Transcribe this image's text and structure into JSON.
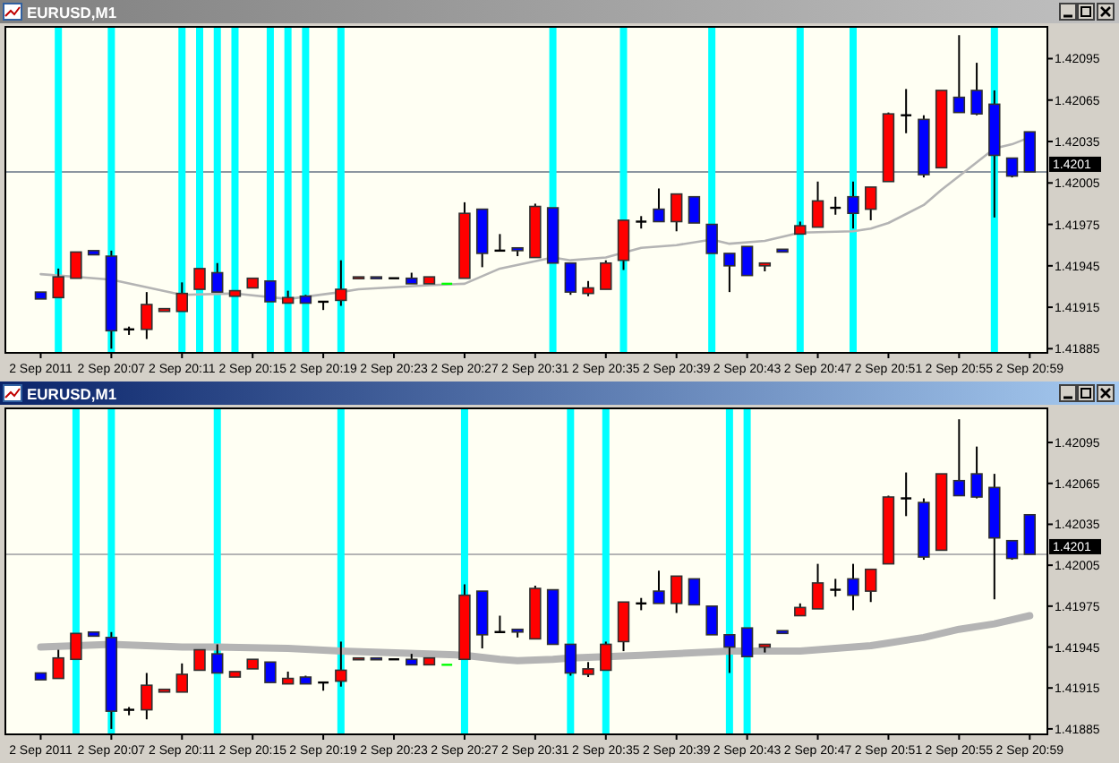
{
  "chart_data": [
    {
      "type": "candlestick",
      "title": "EURUSD,M1",
      "x": [
        "2011-09-02T20:03",
        "2011-09-02T20:04",
        "2011-09-02T20:05",
        "2011-09-02T20:06",
        "2011-09-02T20:07",
        "2011-09-02T20:08",
        "2011-09-02T20:09",
        "2011-09-02T20:10",
        "2011-09-02T20:11",
        "2011-09-02T20:12",
        "2011-09-02T20:13",
        "2011-09-02T20:14",
        "2011-09-02T20:15",
        "2011-09-02T20:16",
        "2011-09-02T20:17",
        "2011-09-02T20:18",
        "2011-09-02T20:19",
        "2011-09-02T20:20",
        "2011-09-02T20:21",
        "2011-09-02T20:22",
        "2011-09-02T20:23",
        "2011-09-02T20:24",
        "2011-09-02T20:25",
        "2011-09-02T20:26",
        "2011-09-02T20:27",
        "2011-09-02T20:28",
        "2011-09-02T20:29",
        "2011-09-02T20:30",
        "2011-09-02T20:31",
        "2011-09-02T20:32",
        "2011-09-02T20:33",
        "2011-09-02T20:34",
        "2011-09-02T20:35",
        "2011-09-02T20:36",
        "2011-09-02T20:37",
        "2011-09-02T20:38",
        "2011-09-02T20:39",
        "2011-09-02T20:40",
        "2011-09-02T20:41",
        "2011-09-02T20:42",
        "2011-09-02T20:43",
        "2011-09-02T20:44",
        "2011-09-02T20:45",
        "2011-09-02T20:46",
        "2011-09-02T20:47",
        "2011-09-02T20:48",
        "2011-09-02T20:49",
        "2011-09-02T20:50",
        "2011-09-02T20:51",
        "2011-09-02T20:52",
        "2011-09-02T20:53",
        "2011-09-02T20:54",
        "2011-09-02T20:55",
        "2011-09-02T20:56",
        "2011-09-02T20:57",
        "2011-09-02T20:58",
        "2011-09-02T20:59"
      ],
      "ohlc": [
        [
          1.41926,
          1.41926,
          1.41921,
          1.41921
        ],
        [
          1.41922,
          1.41943,
          1.41922,
          1.41937
        ],
        [
          1.41936,
          1.41955,
          1.41936,
          1.41955
        ],
        [
          1.41956,
          1.41956,
          1.41953,
          1.41953
        ],
        [
          1.41952,
          1.41956,
          1.41885,
          1.41898
        ],
        [
          1.41899,
          1.41901,
          1.41895,
          1.41899
        ],
        [
          1.41899,
          1.41926,
          1.41892,
          1.41917
        ],
        [
          1.41912,
          1.41914,
          1.41912,
          1.41914
        ],
        [
          1.41912,
          1.41933,
          1.41912,
          1.41925
        ],
        [
          1.41928,
          1.41943,
          1.41928,
          1.41943
        ],
        [
          1.4194,
          1.41947,
          1.41926,
          1.41926
        ],
        [
          1.41923,
          1.41927,
          1.41923,
          1.41927
        ],
        [
          1.41929,
          1.41936,
          1.41929,
          1.41936
        ],
        [
          1.41934,
          1.41934,
          1.41919,
          1.41919
        ],
        [
          1.41918,
          1.41927,
          1.41918,
          1.41922
        ],
        [
          1.41923,
          1.41924,
          1.41918,
          1.41918
        ],
        [
          1.41919,
          1.41919,
          1.41913,
          1.41919
        ],
        [
          1.4192,
          1.41949,
          1.41916,
          1.41928
        ],
        [
          1.41936,
          1.41937,
          1.41936,
          1.41937
        ],
        [
          1.41937,
          1.41937,
          1.41936,
          1.41936
        ],
        [
          1.41936,
          1.41936,
          1.41936,
          1.41936
        ],
        [
          1.41936,
          1.4194,
          1.41932,
          1.41932
        ],
        [
          1.41932,
          1.41937,
          1.41932,
          1.41937
        ],
        [
          1.41932,
          1.41932,
          1.41932,
          1.41932
        ],
        [
          1.41936,
          1.41991,
          1.41936,
          1.41983
        ],
        [
          1.41986,
          1.41986,
          1.41944,
          1.41954
        ],
        [
          1.41956,
          1.41968,
          1.41956,
          1.41956
        ],
        [
          1.41958,
          1.41958,
          1.41952,
          1.41956
        ],
        [
          1.41951,
          1.4199,
          1.41951,
          1.41988
        ],
        [
          1.41987,
          1.41987,
          1.41947,
          1.41947
        ],
        [
          1.41947,
          1.41947,
          1.41924,
          1.41926
        ],
        [
          1.41925,
          1.41934,
          1.41923,
          1.41929
        ],
        [
          1.41928,
          1.41949,
          1.41928,
          1.41947
        ],
        [
          1.41949,
          1.41978,
          1.41942,
          1.41978
        ],
        [
          1.41977,
          1.41981,
          1.41972,
          1.41977
        ],
        [
          1.41986,
          1.42001,
          1.41977,
          1.41977
        ],
        [
          1.41977,
          1.41997,
          1.4197,
          1.41997
        ],
        [
          1.41995,
          1.41995,
          1.41976,
          1.41976
        ],
        [
          1.41975,
          1.41975,
          1.41954,
          1.41954
        ],
        [
          1.41954,
          1.41954,
          1.41926,
          1.41945
        ],
        [
          1.41959,
          1.41959,
          1.41938,
          1.41938
        ],
        [
          1.41945,
          1.41947,
          1.41941,
          1.41947
        ],
        [
          1.41957,
          1.41957,
          1.41955,
          1.41955
        ],
        [
          1.41968,
          1.41977,
          1.41968,
          1.41974
        ],
        [
          1.41973,
          1.42006,
          1.41973,
          1.41992
        ],
        [
          1.41987,
          1.41995,
          1.41982,
          1.41987
        ],
        [
          1.41995,
          1.42006,
          1.41972,
          1.41983
        ],
        [
          1.41986,
          1.42002,
          1.41978,
          1.42002
        ],
        [
          1.42006,
          1.42056,
          1.42006,
          1.42055
        ],
        [
          1.42054,
          1.42073,
          1.42041,
          1.42054
        ],
        [
          1.42051,
          1.42054,
          1.42009,
          1.42011
        ],
        [
          1.42016,
          1.42072,
          1.42016,
          1.42072
        ],
        [
          1.42067,
          1.42112,
          1.42056,
          1.42056
        ],
        [
          1.42072,
          1.42092,
          1.42054,
          1.42055
        ],
        [
          1.42062,
          1.42072,
          1.4198,
          1.42025
        ],
        [
          1.42023,
          1.42023,
          1.42009,
          1.4201
        ],
        [
          1.42042,
          1.42042,
          1.42013,
          1.42013
        ]
      ],
      "colors": [
        "#0000ff",
        "#ff0000",
        "#ff0000",
        "#0000ff",
        "#0000ff",
        "#000000",
        "#ff0000",
        "#ff0000",
        "#ff0000",
        "#ff0000",
        "#0000ff",
        "#ff0000",
        "#ff0000",
        "#0000ff",
        "#ff0000",
        "#0000ff",
        "#000000",
        "#ff0000",
        "#ff0000",
        "#0000ff",
        "#000000",
        "#0000ff",
        "#ff0000",
        "#00ff00",
        "#ff0000",
        "#0000ff",
        "#000000",
        "#0000ff",
        "#ff0000",
        "#0000ff",
        "#0000ff",
        "#ff0000",
        "#ff0000",
        "#ff0000",
        "#000000",
        "#0000ff",
        "#ff0000",
        "#0000ff",
        "#0000ff",
        "#0000ff",
        "#0000ff",
        "#ff0000",
        "#0000ff",
        "#ff0000",
        "#ff0000",
        "#000000",
        "#0000ff",
        "#ff0000",
        "#ff0000",
        "#000000",
        "#0000ff",
        "#ff0000",
        "#0000ff",
        "#0000ff",
        "#0000ff",
        "#0000ff",
        "#0000ff"
      ],
      "series": [
        {
          "type": "line",
          "color": "#b4b4b4",
          "x": [
            "2011-09-02T20:03",
            "2011-09-02T20:07",
            "2011-09-02T20:11",
            "2011-09-02T20:14",
            "2011-09-02T20:17",
            "2011-09-02T20:20",
            "2011-09-02T20:21",
            "2011-09-02T20:25",
            "2011-09-02T20:27",
            "2011-09-02T20:29",
            "2011-09-02T20:32",
            "2011-09-02T20:33",
            "2011-09-02T20:35",
            "2011-09-02T20:37",
            "2011-09-02T20:39",
            "2011-09-02T20:41",
            "2011-09-02T20:42",
            "2011-09-02T20:44",
            "2011-09-02T20:46",
            "2011-09-02T20:49",
            "2011-09-02T20:50",
            "2011-09-02T20:51",
            "2011-09-02T20:53",
            "2011-09-02T20:54",
            "2011-09-02T20:56",
            "2011-09-02T20:57",
            "2011-09-02T20:58",
            "2011-09-02T20:59"
          ],
          "values": [
            1.41939,
            1.41935,
            1.41924,
            1.41925,
            1.41921,
            1.41926,
            1.41928,
            1.41931,
            1.41932,
            1.41943,
            1.41951,
            1.41949,
            1.41951,
            1.41958,
            1.4196,
            1.41964,
            1.41961,
            1.41963,
            1.41969,
            1.4197,
            1.41972,
            1.41976,
            1.41989,
            1.42,
            1.4202,
            1.4203,
            1.42033,
            1.42038
          ]
        }
      ],
      "xlim": [
        "2011-09-02T20:01",
        "2011-09-02T21:00"
      ],
      "xticks": [
        {
          "value": "2011-09-02T20:03",
          "label": "2 Sep 2011"
        },
        {
          "value": "2011-09-02T20:07",
          "label": "2 Sep 20:07"
        },
        {
          "value": "2011-09-02T20:11",
          "label": "2 Sep 20:11"
        },
        {
          "value": "2011-09-02T20:15",
          "label": "2 Sep 20:15"
        },
        {
          "value": "2011-09-02T20:19",
          "label": "2 Sep 20:19"
        },
        {
          "value": "2011-09-02T20:23",
          "label": "2 Sep 20:23"
        },
        {
          "value": "2011-09-02T20:27",
          "label": "2 Sep 20:27"
        },
        {
          "value": "2011-09-02T20:31",
          "label": "2 Sep 20:31"
        },
        {
          "value": "2011-09-02T20:35",
          "label": "2 Sep 20:35"
        },
        {
          "value": "2011-09-02T20:39",
          "label": "2 Sep 20:39"
        },
        {
          "value": "2011-09-02T20:43",
          "label": "2 Sep 20:43"
        },
        {
          "value": "2011-09-02T20:47",
          "label": "2 Sep 20:47"
        },
        {
          "value": "2011-09-02T20:51",
          "label": "2 Sep 20:51"
        },
        {
          "value": "2011-09-02T20:55",
          "label": "2 Sep 20:55"
        },
        {
          "value": "2011-09-02T20:59",
          "label": "2 Sep 20:59"
        }
      ],
      "ylim": [
        1.41882,
        1.42118
      ],
      "yticks": [
        1.41885,
        1.41915,
        1.41945,
        1.41975,
        1.42005,
        1.42035,
        1.42065,
        1.42095
      ],
      "ref_lines": [
        {
          "axis": "y",
          "value": 1.42013,
          "label": "1.4201",
          "color": "#8c96a0"
        },
        {
          "axis": "x",
          "value": "2011-09-02T20:04",
          "color": "#00ffff"
        },
        {
          "axis": "x",
          "value": "2011-09-02T20:07",
          "color": "#00ffff"
        },
        {
          "axis": "x",
          "value": "2011-09-02T20:11",
          "color": "#00ffff"
        },
        {
          "axis": "x",
          "value": "2011-09-02T20:12",
          "color": "#00ffff"
        },
        {
          "axis": "x",
          "value": "2011-09-02T20:13",
          "color": "#00ffff"
        },
        {
          "axis": "x",
          "value": "2011-09-02T20:14",
          "color": "#00ffff"
        },
        {
          "axis": "x",
          "value": "2011-09-02T20:16",
          "color": "#00ffff"
        },
        {
          "axis": "x",
          "value": "2011-09-02T20:17",
          "color": "#00ffff"
        },
        {
          "axis": "x",
          "value": "2011-09-02T20:18",
          "color": "#00ffff"
        },
        {
          "axis": "x",
          "value": "2011-09-02T20:20",
          "color": "#00ffff"
        },
        {
          "axis": "x",
          "value": "2011-09-02T20:32",
          "color": "#00ffff"
        },
        {
          "axis": "x",
          "value": "2011-09-02T20:36",
          "color": "#00ffff"
        },
        {
          "axis": "x",
          "value": "2011-09-02T20:41",
          "color": "#00ffff"
        },
        {
          "axis": "x",
          "value": "2011-09-02T20:46",
          "color": "#00ffff"
        },
        {
          "axis": "x",
          "value": "2011-09-02T20:49",
          "color": "#00ffff"
        },
        {
          "axis": "x",
          "value": "2011-09-02T20:57",
          "color": "#00ffff"
        }
      ]
    },
    {
      "type": "candlestick",
      "title": "EURUSD,M1",
      "x": [
        "2011-09-02T20:03",
        "2011-09-02T20:04",
        "2011-09-02T20:05",
        "2011-09-02T20:06",
        "2011-09-02T20:07",
        "2011-09-02T20:08",
        "2011-09-02T20:09",
        "2011-09-02T20:10",
        "2011-09-02T20:11",
        "2011-09-02T20:12",
        "2011-09-02T20:13",
        "2011-09-02T20:14",
        "2011-09-02T20:15",
        "2011-09-02T20:16",
        "2011-09-02T20:17",
        "2011-09-02T20:18",
        "2011-09-02T20:19",
        "2011-09-02T20:20",
        "2011-09-02T20:21",
        "2011-09-02T20:22",
        "2011-09-02T20:23",
        "2011-09-02T20:24",
        "2011-09-02T20:25",
        "2011-09-02T20:26",
        "2011-09-02T20:27",
        "2011-09-02T20:28",
        "2011-09-02T20:29",
        "2011-09-02T20:30",
        "2011-09-02T20:31",
        "2011-09-02T20:32",
        "2011-09-02T20:33",
        "2011-09-02T20:34",
        "2011-09-02T20:35",
        "2011-09-02T20:36",
        "2011-09-02T20:37",
        "2011-09-02T20:38",
        "2011-09-02T20:39",
        "2011-09-02T20:40",
        "2011-09-02T20:41",
        "2011-09-02T20:42",
        "2011-09-02T20:43",
        "2011-09-02T20:44",
        "2011-09-02T20:45",
        "2011-09-02T20:46",
        "2011-09-02T20:47",
        "2011-09-02T20:48",
        "2011-09-02T20:49",
        "2011-09-02T20:50",
        "2011-09-02T20:51",
        "2011-09-02T20:52",
        "2011-09-02T20:53",
        "2011-09-02T20:54",
        "2011-09-02T20:55",
        "2011-09-02T20:56",
        "2011-09-02T20:57",
        "2011-09-02T20:58",
        "2011-09-02T20:59"
      ],
      "ohlc": [
        [
          1.41926,
          1.41926,
          1.41921,
          1.41921
        ],
        [
          1.41922,
          1.41943,
          1.41922,
          1.41937
        ],
        [
          1.41936,
          1.41955,
          1.41936,
          1.41955
        ],
        [
          1.41956,
          1.41956,
          1.41953,
          1.41953
        ],
        [
          1.41952,
          1.41956,
          1.41885,
          1.41898
        ],
        [
          1.41899,
          1.41901,
          1.41895,
          1.41899
        ],
        [
          1.41899,
          1.41926,
          1.41892,
          1.41917
        ],
        [
          1.41912,
          1.41914,
          1.41912,
          1.41914
        ],
        [
          1.41912,
          1.41933,
          1.41912,
          1.41925
        ],
        [
          1.41928,
          1.41943,
          1.41928,
          1.41943
        ],
        [
          1.4194,
          1.41947,
          1.41926,
          1.41926
        ],
        [
          1.41923,
          1.41927,
          1.41923,
          1.41927
        ],
        [
          1.41929,
          1.41936,
          1.41929,
          1.41936
        ],
        [
          1.41934,
          1.41934,
          1.41919,
          1.41919
        ],
        [
          1.41918,
          1.41927,
          1.41918,
          1.41922
        ],
        [
          1.41923,
          1.41924,
          1.41918,
          1.41918
        ],
        [
          1.41919,
          1.41919,
          1.41913,
          1.41919
        ],
        [
          1.4192,
          1.41949,
          1.41916,
          1.41928
        ],
        [
          1.41936,
          1.41937,
          1.41936,
          1.41937
        ],
        [
          1.41937,
          1.41937,
          1.41936,
          1.41936
        ],
        [
          1.41936,
          1.41936,
          1.41936,
          1.41936
        ],
        [
          1.41936,
          1.4194,
          1.41932,
          1.41932
        ],
        [
          1.41932,
          1.41937,
          1.41932,
          1.41937
        ],
        [
          1.41932,
          1.41932,
          1.41932,
          1.41932
        ],
        [
          1.41936,
          1.41991,
          1.41936,
          1.41983
        ],
        [
          1.41986,
          1.41986,
          1.41944,
          1.41954
        ],
        [
          1.41956,
          1.41968,
          1.41956,
          1.41956
        ],
        [
          1.41958,
          1.41958,
          1.41952,
          1.41956
        ],
        [
          1.41951,
          1.4199,
          1.41951,
          1.41988
        ],
        [
          1.41987,
          1.41987,
          1.41947,
          1.41947
        ],
        [
          1.41947,
          1.41947,
          1.41924,
          1.41926
        ],
        [
          1.41925,
          1.41934,
          1.41923,
          1.41929
        ],
        [
          1.41928,
          1.41949,
          1.41928,
          1.41947
        ],
        [
          1.41949,
          1.41978,
          1.41942,
          1.41978
        ],
        [
          1.41977,
          1.41981,
          1.41972,
          1.41977
        ],
        [
          1.41986,
          1.42001,
          1.41977,
          1.41977
        ],
        [
          1.41977,
          1.41997,
          1.4197,
          1.41997
        ],
        [
          1.41995,
          1.41995,
          1.41976,
          1.41976
        ],
        [
          1.41975,
          1.41975,
          1.41954,
          1.41954
        ],
        [
          1.41954,
          1.41954,
          1.41926,
          1.41945
        ],
        [
          1.41959,
          1.41959,
          1.41938,
          1.41938
        ],
        [
          1.41945,
          1.41947,
          1.41941,
          1.41947
        ],
        [
          1.41957,
          1.41957,
          1.41955,
          1.41955
        ],
        [
          1.41968,
          1.41977,
          1.41968,
          1.41974
        ],
        [
          1.41973,
          1.42006,
          1.41973,
          1.41992
        ],
        [
          1.41987,
          1.41995,
          1.41982,
          1.41987
        ],
        [
          1.41995,
          1.42006,
          1.41972,
          1.41983
        ],
        [
          1.41986,
          1.42002,
          1.41978,
          1.42002
        ],
        [
          1.42006,
          1.42056,
          1.42006,
          1.42055
        ],
        [
          1.42054,
          1.42073,
          1.42041,
          1.42054
        ],
        [
          1.42051,
          1.42054,
          1.42009,
          1.42011
        ],
        [
          1.42016,
          1.42072,
          1.42016,
          1.42072
        ],
        [
          1.42067,
          1.42112,
          1.42056,
          1.42056
        ],
        [
          1.42072,
          1.42092,
          1.42054,
          1.42055
        ],
        [
          1.42062,
          1.42072,
          1.4198,
          1.42025
        ],
        [
          1.42023,
          1.42023,
          1.42009,
          1.4201
        ],
        [
          1.42042,
          1.42042,
          1.42013,
          1.42013
        ]
      ],
      "colors": [
        "#0000ff",
        "#ff0000",
        "#ff0000",
        "#0000ff",
        "#0000ff",
        "#000000",
        "#ff0000",
        "#ff0000",
        "#ff0000",
        "#ff0000",
        "#0000ff",
        "#ff0000",
        "#ff0000",
        "#0000ff",
        "#ff0000",
        "#0000ff",
        "#000000",
        "#ff0000",
        "#ff0000",
        "#0000ff",
        "#000000",
        "#0000ff",
        "#ff0000",
        "#00ff00",
        "#ff0000",
        "#0000ff",
        "#000000",
        "#0000ff",
        "#ff0000",
        "#0000ff",
        "#0000ff",
        "#ff0000",
        "#ff0000",
        "#ff0000",
        "#000000",
        "#0000ff",
        "#ff0000",
        "#0000ff",
        "#0000ff",
        "#0000ff",
        "#0000ff",
        "#ff0000",
        "#0000ff",
        "#ff0000",
        "#ff0000",
        "#000000",
        "#0000ff",
        "#ff0000",
        "#ff0000",
        "#000000",
        "#0000ff",
        "#ff0000",
        "#0000ff",
        "#0000ff",
        "#0000ff",
        "#0000ff",
        "#0000ff"
      ],
      "series": [
        {
          "type": "line",
          "color": "#b4b4b4",
          "x": [
            "2011-09-02T20:03",
            "2011-09-02T20:07",
            "2011-09-02T20:11",
            "2011-09-02T20:13",
            "2011-09-02T20:17",
            "2011-09-02T20:20",
            "2011-09-02T20:25",
            "2011-09-02T20:27",
            "2011-09-02T20:29",
            "2011-09-02T20:30",
            "2011-09-02T20:32",
            "2011-09-02T20:33",
            "2011-09-02T20:35",
            "2011-09-02T20:37",
            "2011-09-02T20:42",
            "2011-09-02T20:44",
            "2011-09-02T20:46",
            "2011-09-02T20:49",
            "2011-09-02T20:50",
            "2011-09-02T20:51",
            "2011-09-02T20:53",
            "2011-09-02T20:55",
            "2011-09-02T20:57",
            "2011-09-02T20:59"
          ],
          "values": [
            1.41945,
            1.41947,
            1.41945,
            1.41945,
            1.41944,
            1.41942,
            1.4194,
            1.41939,
            1.41936,
            1.41935,
            1.41936,
            1.41937,
            1.41938,
            1.41939,
            1.41942,
            1.41942,
            1.41942,
            1.41945,
            1.41946,
            1.41948,
            1.41952,
            1.41958,
            1.41962,
            1.41968
          ]
        }
      ],
      "xlim": [
        "2011-09-02T20:01",
        "2011-09-02T21:00"
      ],
      "xticks": [
        {
          "value": "2011-09-02T20:03",
          "label": "2 Sep 2011"
        },
        {
          "value": "2011-09-02T20:07",
          "label": "2 Sep 20:07"
        },
        {
          "value": "2011-09-02T20:11",
          "label": "2 Sep 20:11"
        },
        {
          "value": "2011-09-02T20:15",
          "label": "2 Sep 20:15"
        },
        {
          "value": "2011-09-02T20:19",
          "label": "2 Sep 20:19"
        },
        {
          "value": "2011-09-02T20:23",
          "label": "2 Sep 20:23"
        },
        {
          "value": "2011-09-02T20:27",
          "label": "2 Sep 20:27"
        },
        {
          "value": "2011-09-02T20:31",
          "label": "2 Sep 20:31"
        },
        {
          "value": "2011-09-02T20:35",
          "label": "2 Sep 20:35"
        },
        {
          "value": "2011-09-02T20:39",
          "label": "2 Sep 20:39"
        },
        {
          "value": "2011-09-02T20:43",
          "label": "2 Sep 20:43"
        },
        {
          "value": "2011-09-02T20:47",
          "label": "2 Sep 20:47"
        },
        {
          "value": "2011-09-02T20:51",
          "label": "2 Sep 20:51"
        },
        {
          "value": "2011-09-02T20:55",
          "label": "2 Sep 20:55"
        },
        {
          "value": "2011-09-02T20:59",
          "label": "2 Sep 20:59"
        }
      ],
      "ylim": [
        1.41881,
        1.4212
      ],
      "yticks": [
        1.41885,
        1.41915,
        1.41945,
        1.41975,
        1.42005,
        1.42035,
        1.42065,
        1.42095
      ],
      "ref_lines": [
        {
          "axis": "y",
          "value": 1.42013,
          "label": "1.4201",
          "color": "#b4b4b4"
        },
        {
          "axis": "x",
          "value": "2011-09-02T20:05",
          "color": "#00ffff"
        },
        {
          "axis": "x",
          "value": "2011-09-02T20:07",
          "color": "#00ffff"
        },
        {
          "axis": "x",
          "value": "2011-09-02T20:13",
          "color": "#00ffff"
        },
        {
          "axis": "x",
          "value": "2011-09-02T20:20",
          "color": "#00ffff"
        },
        {
          "axis": "x",
          "value": "2011-09-02T20:27",
          "color": "#00ffff"
        },
        {
          "axis": "x",
          "value": "2011-09-02T20:33",
          "color": "#00ffff"
        },
        {
          "axis": "x",
          "value": "2011-09-02T20:35",
          "color": "#00ffff"
        },
        {
          "axis": "x",
          "value": "2011-09-02T20:42",
          "color": "#00ffff"
        },
        {
          "axis": "x",
          "value": "2011-09-02T20:43",
          "color": "#00ffff"
        }
      ]
    }
  ]
}
